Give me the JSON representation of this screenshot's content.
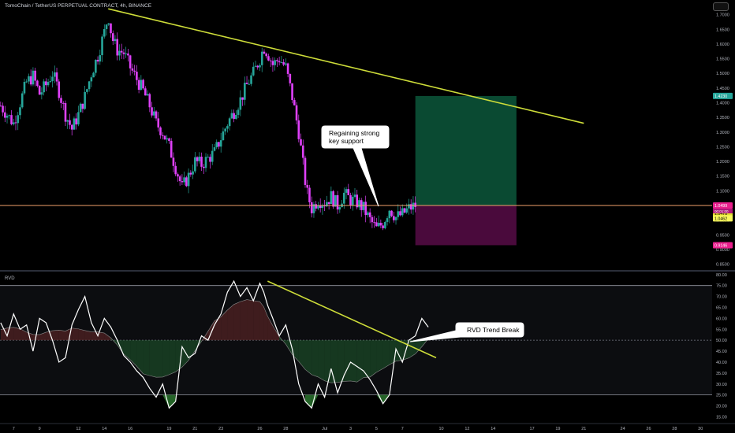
{
  "header": {
    "symbol_title": "TomoChain / TetherUS PERPETUAL CONTRACT, 4h, BINANCE"
  },
  "panes": {
    "rvd_label": "RVD"
  },
  "annotations": {
    "support_callout": {
      "line1": "Regaining strong",
      "line2": "key support"
    },
    "rvd_callout": "RVD Trend Break"
  },
  "price_badges": {
    "target": "1.4230",
    "current": "1.0499",
    "current_sub": "00:01:00",
    "level_a": "1.0478",
    "level_b": "1.0462",
    "stop": "0.9146"
  },
  "colors": {
    "background": "#000000",
    "bull_candle": "#26a69a",
    "bear_candle": "#e040fb",
    "trendline": "#cddc39",
    "support_line": "#f0a06a",
    "target_zone": "#0a4a32",
    "stop_zone": "#4a0a3c",
    "rvd_line": "#ffffff"
  },
  "chart_data": [
    {
      "type": "candlestick",
      "pane": "price",
      "title": "TomoChain / TetherUS PERPETUAL CONTRACT, 4h, BINANCE",
      "x_ticks": [
        "7",
        "9",
        "12",
        "14",
        "16",
        "19",
        "21",
        "23",
        "26",
        "28",
        "Jul",
        "3",
        "5",
        "7",
        "10",
        "12",
        "14",
        "17",
        "19",
        "21",
        "24",
        "26",
        "28",
        "30"
      ],
      "x_tick_days": [
        7,
        9,
        12,
        14,
        16,
        19,
        21,
        23,
        26,
        28,
        31,
        33,
        35,
        37,
        40,
        42,
        44,
        47,
        49,
        51,
        54,
        56,
        58,
        60
      ],
      "y_ticks": [
        "1.7000",
        "1.6500",
        "1.6000",
        "1.5500",
        "1.5000",
        "1.4500",
        "1.4000",
        "1.3500",
        "1.3000",
        "1.2500",
        "1.2000",
        "1.1500",
        "1.1000",
        "1.0500",
        "1.0000",
        "0.9500",
        "0.9000",
        "0.8500"
      ],
      "ylim": [
        0.83,
        1.75
      ],
      "close_path": [
        [
          6.0,
          1.39
        ],
        [
          6.5,
          1.36
        ],
        [
          7.0,
          1.33
        ],
        [
          7.5,
          1.4
        ],
        [
          8.0,
          1.47
        ],
        [
          8.5,
          1.49
        ],
        [
          9.0,
          1.43
        ],
        [
          9.5,
          1.46
        ],
        [
          10.0,
          1.5
        ],
        [
          10.5,
          1.44
        ],
        [
          11.0,
          1.36
        ],
        [
          11.5,
          1.31
        ],
        [
          12.0,
          1.36
        ],
        [
          12.5,
          1.42
        ],
        [
          13.0,
          1.5
        ],
        [
          13.5,
          1.56
        ],
        [
          14.0,
          1.64
        ],
        [
          14.3,
          1.7
        ],
        [
          14.6,
          1.62
        ],
        [
          15.0,
          1.58
        ],
        [
          15.5,
          1.57
        ],
        [
          16.0,
          1.52
        ],
        [
          16.5,
          1.48
        ],
        [
          17.0,
          1.44
        ],
        [
          17.5,
          1.39
        ],
        [
          18.0,
          1.33
        ],
        [
          18.5,
          1.3
        ],
        [
          19.0,
          1.25
        ],
        [
          19.5,
          1.18
        ],
        [
          20.0,
          1.11
        ],
        [
          20.5,
          1.15
        ],
        [
          21.0,
          1.2
        ],
        [
          21.5,
          1.19
        ],
        [
          22.0,
          1.21
        ],
        [
          22.5,
          1.23
        ],
        [
          23.0,
          1.28
        ],
        [
          23.5,
          1.33
        ],
        [
          24.0,
          1.37
        ],
        [
          24.5,
          1.41
        ],
        [
          25.0,
          1.46
        ],
        [
          25.5,
          1.5
        ],
        [
          26.0,
          1.55
        ],
        [
          26.3,
          1.59
        ],
        [
          26.6,
          1.57
        ],
        [
          27.0,
          1.53
        ],
        [
          27.5,
          1.55
        ],
        [
          28.0,
          1.52
        ],
        [
          28.5,
          1.42
        ],
        [
          29.0,
          1.3
        ],
        [
          29.3,
          1.2
        ],
        [
          29.6,
          1.1
        ],
        [
          30.0,
          1.04
        ],
        [
          30.5,
          1.07
        ],
        [
          31.0,
          1.06
        ],
        [
          31.5,
          1.08
        ],
        [
          32.0,
          1.05
        ],
        [
          32.5,
          1.09
        ],
        [
          33.0,
          1.07
        ],
        [
          33.5,
          1.06
        ],
        [
          34.0,
          1.04
        ],
        [
          34.5,
          1.0
        ],
        [
          35.0,
          0.97
        ],
        [
          35.5,
          0.99
        ],
        [
          36.0,
          1.04
        ],
        [
          36.5,
          1.01
        ],
        [
          37.0,
          1.02
        ],
        [
          37.5,
          1.04
        ],
        [
          38.0,
          1.05
        ]
      ],
      "trendline": {
        "start": [
          14.3,
          1.72
        ],
        "end": [
          51.0,
          1.33
        ]
      },
      "support_level": 1.0499,
      "long_position": {
        "x_start": 38.0,
        "x_end": 45.8,
        "entry": 1.0499,
        "target": 1.423,
        "stop": 0.9146
      },
      "y_badges": [
        {
          "value": 1.423,
          "label": "1.4230",
          "kind": "target"
        },
        {
          "value": 1.0499,
          "label": "1.0499",
          "kind": "current"
        },
        {
          "value": 1.0478,
          "label": "1.0478",
          "kind": "level-a"
        },
        {
          "value": 1.0462,
          "label": "1.0462",
          "kind": "level-b"
        },
        {
          "value": 0.9146,
          "label": "0.9146",
          "kind": "stop"
        }
      ],
      "annotation": {
        "text": "Regaining strong key support",
        "pointer_to": [
          37.0,
          1.06
        ]
      }
    },
    {
      "type": "line",
      "pane": "RVD",
      "title": "RVD",
      "y_ticks": [
        "80.00",
        "75.00",
        "70.00",
        "65.00",
        "60.00",
        "55.00",
        "50.00",
        "45.00",
        "40.00",
        "35.00",
        "30.00",
        "25.00",
        "20.00",
        "15.00"
      ],
      "ylim": [
        13,
        81
      ],
      "levels": [
        75,
        50,
        25
      ],
      "series": [
        {
          "name": "RVD",
          "x": [
            6.0,
            6.5,
            7.0,
            7.5,
            8.0,
            8.5,
            9.0,
            9.5,
            10.0,
            10.5,
            11.0,
            11.5,
            12.0,
            12.5,
            13.0,
            13.5,
            14.0,
            14.5,
            15.0,
            15.5,
            16.0,
            16.5,
            17.0,
            17.5,
            18.0,
            18.5,
            19.0,
            19.5,
            20.0,
            20.5,
            21.0,
            21.5,
            22.0,
            22.5,
            23.0,
            23.5,
            24.0,
            24.5,
            25.0,
            25.5,
            26.0,
            26.3,
            26.6,
            27.0,
            27.5,
            28.0,
            28.5,
            29.0,
            29.5,
            30.0,
            30.5,
            31.0,
            31.5,
            32.0,
            32.5,
            33.0,
            33.5,
            34.0,
            34.5,
            35.0,
            35.5,
            36.0,
            36.5,
            37.0,
            37.5,
            38.0,
            38.5,
            39.0
          ],
          "y": [
            58,
            52,
            62,
            55,
            57,
            45,
            60,
            58,
            50,
            40,
            42,
            57,
            64,
            70,
            58,
            52,
            60,
            56,
            50,
            43,
            40,
            36,
            33,
            28,
            24,
            30,
            19,
            22,
            47,
            42,
            44,
            52,
            50,
            57,
            62,
            72,
            77,
            70,
            74,
            68,
            76,
            72,
            66,
            60,
            52,
            57,
            46,
            30,
            22,
            19,
            30,
            24,
            37,
            26,
            34,
            40,
            38,
            36,
            32,
            27,
            21,
            25,
            46,
            40,
            50,
            52,
            60,
            56
          ]
        }
      ],
      "trendline": {
        "start": [
          26.6,
          77.0
        ],
        "end": [
          39.6,
          42.0
        ]
      },
      "annotation": {
        "text": "RVD Trend Break",
        "pointer_to": [
          38.2,
          50.0
        ]
      }
    }
  ]
}
